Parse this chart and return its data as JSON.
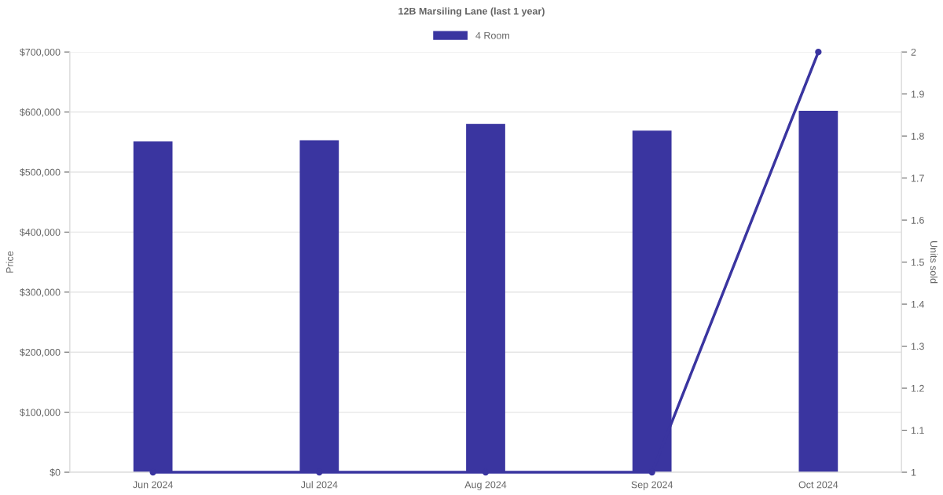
{
  "chart_data": {
    "type": "bar",
    "title": "12B Marsiling Lane (last 1 year)",
    "categories": [
      "Jun 2024",
      "Jul 2024",
      "Aug 2024",
      "Sep 2024",
      "Oct 2024"
    ],
    "series": [
      {
        "name": "4 Room",
        "color": "#3a35a0",
        "values": [
          551000,
          553000,
          580000,
          569000,
          602000
        ]
      },
      {
        "type": "line",
        "axis": "y2",
        "color": "#3a35a0",
        "values": [
          1,
          1,
          1,
          1,
          2
        ]
      }
    ],
    "ylabel": "Price",
    "y2label": "Units sold",
    "ylim": [
      0,
      700000
    ],
    "yticks": [
      {
        "value": 0,
        "label": "$0"
      },
      {
        "value": 100000,
        "label": "$100,000"
      },
      {
        "value": 200000,
        "label": "$200,000"
      },
      {
        "value": 300000,
        "label": "$300,000"
      },
      {
        "value": 400000,
        "label": "$400,000"
      },
      {
        "value": 500000,
        "label": "$500,000"
      },
      {
        "value": 600000,
        "label": "$600,000"
      },
      {
        "value": 700000,
        "label": "$700,000"
      }
    ],
    "y2lim": [
      1,
      2
    ],
    "y2ticks": [
      1,
      1.1,
      1.2,
      1.3,
      1.4,
      1.5,
      1.6,
      1.7,
      1.8,
      1.9,
      2
    ],
    "grid": "y",
    "legend": "top",
    "marker": "circle",
    "line_style": "solid"
  }
}
